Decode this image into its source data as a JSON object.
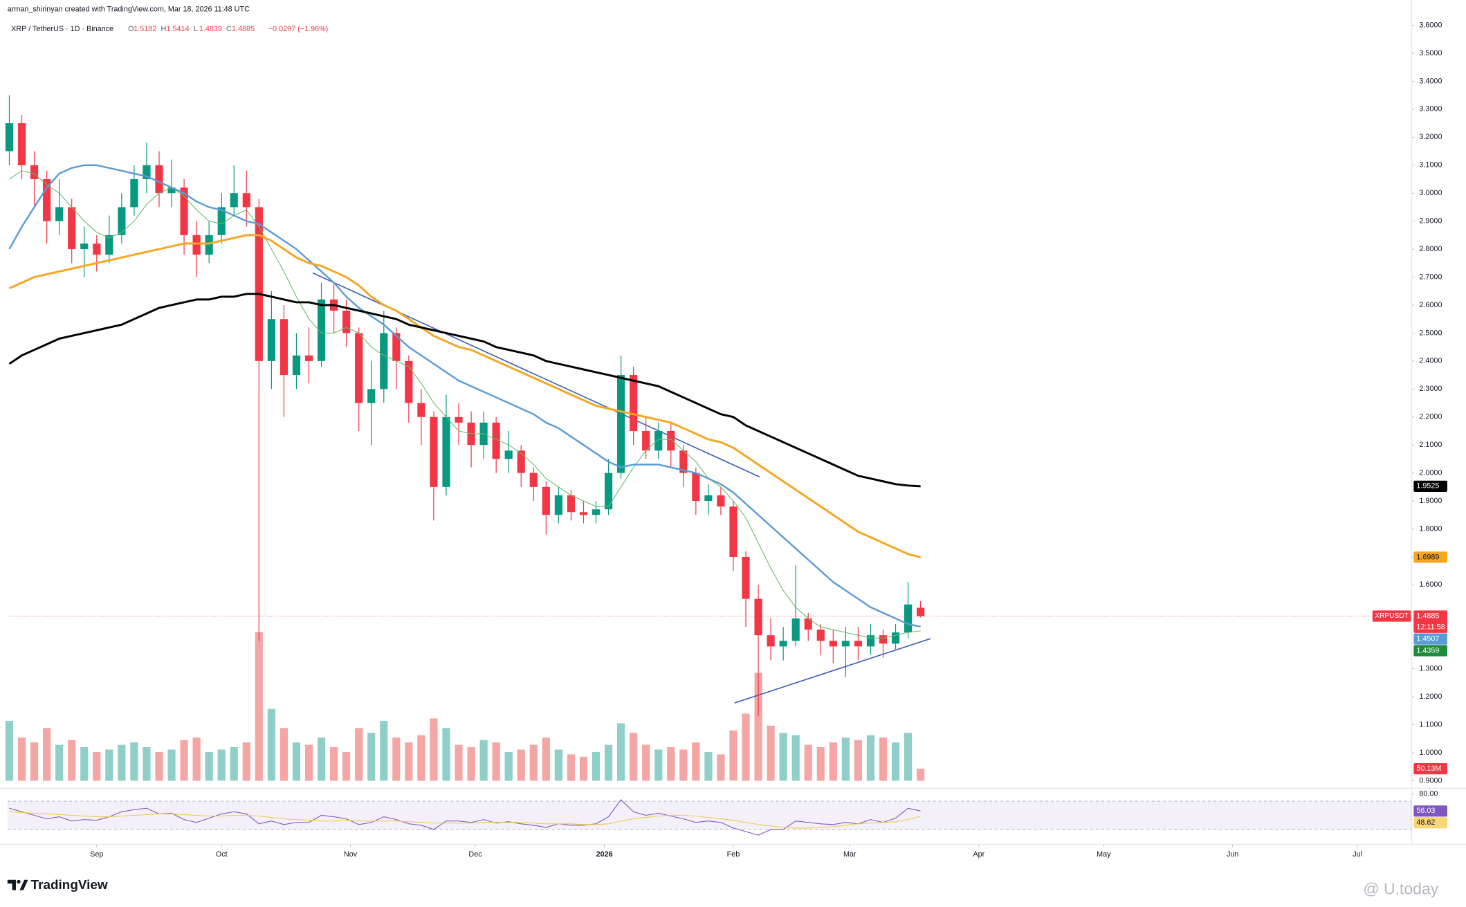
{
  "header": {
    "author_line": "arman_shirinyan created with TradingView.com, Mar 18, 2026 11:48 UTC",
    "brand": "TradingView",
    "watermark": "@ U.today"
  },
  "chart_data": {
    "type": "candlestick",
    "symbol": "XRP / TetherUS · 1D · Binance",
    "ohlc_letters": [
      "O",
      "H",
      "L",
      "C"
    ],
    "change": "−0.0297 (−1.96%)",
    "ticker_label": "XRPUSDT",
    "countdown": "12:11:58",
    "up_color": "#089981",
    "down_color": "#f23645",
    "xlim": [
      -0.5,
      112.5
    ],
    "xticks": [
      {
        "value": 7,
        "label": "Sep"
      },
      {
        "value": 17,
        "label": "Oct"
      },
      {
        "value": 27.33,
        "label": "Nov"
      },
      {
        "value": 37.33,
        "label": "Dec"
      },
      {
        "value": 47.67,
        "label": "2026"
      },
      {
        "value": 58,
        "label": "Feb"
      },
      {
        "value": 67.33,
        "label": "Mar"
      },
      {
        "value": 77.67,
        "label": "Apr"
      },
      {
        "value": 87.67,
        "label": "May"
      },
      {
        "value": 98,
        "label": "Jun"
      },
      {
        "value": 108,
        "label": "Jul"
      }
    ],
    "ylim": [
      0.9,
      3.6
    ],
    "yticks": [
      {
        "value": 3.6,
        "label": "3.6000"
      },
      {
        "value": 3.5,
        "label": "3.5000"
      },
      {
        "value": 3.4,
        "label": "3.4000"
      },
      {
        "value": 3.3,
        "label": "3.3000"
      },
      {
        "value": 3.2,
        "label": "3.2000"
      },
      {
        "value": 3.1,
        "label": "3.1000"
      },
      {
        "value": 3.0,
        "label": "3.0000"
      },
      {
        "value": 2.9,
        "label": "2.9000"
      },
      {
        "value": 2.8,
        "label": "2.8000"
      },
      {
        "value": 2.7,
        "label": "2.7000"
      },
      {
        "value": 2.6,
        "label": "2.6000"
      },
      {
        "value": 2.5,
        "label": "2.5000"
      },
      {
        "value": 2.4,
        "label": "2.4000"
      },
      {
        "value": 2.3,
        "label": "2.3000"
      },
      {
        "value": 2.2,
        "label": "2.2000"
      },
      {
        "value": 2.1,
        "label": "2.1000"
      },
      {
        "value": 2.0,
        "label": "2.0000"
      },
      {
        "value": 1.9,
        "label": "1.9000"
      },
      {
        "value": 1.8,
        "label": "1.8000"
      },
      {
        "value": 1.7,
        "label": "1.7000"
      },
      {
        "value": 1.6,
        "label": "1.6000"
      },
      {
        "value": 1.3,
        "label": "1.3000"
      },
      {
        "value": 1.2,
        "label": "1.2000"
      },
      {
        "value": 1.1,
        "label": "1.1000"
      },
      {
        "value": 1.0,
        "label": "1.0000"
      },
      {
        "value": 0.9,
        "label": "0.9000"
      }
    ],
    "candles": {
      "open": [
        3.15,
        3.25,
        3.1,
        3.05,
        2.9,
        2.95,
        2.8,
        2.82,
        2.78,
        2.85,
        2.95,
        3.05,
        3.1,
        3.0,
        3.02,
        2.85,
        2.78,
        2.85,
        2.95,
        3.0,
        2.95,
        2.4,
        2.55,
        2.35,
        2.42,
        2.4,
        2.62,
        2.58,
        2.5,
        2.25,
        2.3,
        2.5,
        2.4,
        2.25,
        2.2,
        1.95,
        2.2,
        2.18,
        2.1,
        2.18,
        2.05,
        2.08,
        2.0,
        1.95,
        1.85,
        1.92,
        1.86,
        1.85,
        1.87,
        2.0,
        2.35,
        2.15,
        2.08,
        2.15,
        2.08,
        2.0,
        1.9,
        1.92,
        1.88,
        1.7,
        1.55,
        1.42,
        1.38,
        1.4,
        1.48,
        1.44,
        1.4,
        1.38,
        1.4,
        1.38,
        1.42,
        1.39,
        1.43,
        1.5182
      ],
      "high": [
        3.35,
        3.28,
        3.15,
        3.08,
        3.05,
        2.98,
        2.88,
        2.85,
        2.92,
        3.0,
        3.1,
        3.18,
        3.15,
        3.12,
        3.05,
        2.9,
        2.9,
        3.0,
        3.1,
        3.08,
        2.98,
        2.65,
        2.6,
        2.5,
        2.52,
        2.68,
        2.68,
        2.62,
        2.52,
        2.4,
        2.58,
        2.52,
        2.42,
        2.3,
        2.22,
        2.28,
        2.25,
        2.22,
        2.22,
        2.2,
        2.15,
        2.1,
        2.02,
        1.97,
        1.95,
        1.94,
        1.9,
        1.9,
        2.05,
        2.42,
        2.38,
        2.2,
        2.18,
        2.18,
        2.1,
        2.02,
        1.96,
        1.95,
        1.9,
        1.72,
        1.6,
        1.48,
        1.45,
        1.67,
        1.5,
        1.46,
        1.44,
        1.45,
        1.45,
        1.46,
        1.44,
        1.46,
        1.61,
        1.5414
      ],
      "low": [
        3.1,
        3.05,
        2.95,
        2.82,
        2.85,
        2.75,
        2.7,
        2.72,
        2.75,
        2.82,
        2.92,
        3.0,
        2.95,
        2.95,
        2.78,
        2.7,
        2.75,
        2.82,
        2.92,
        2.88,
        1.4,
        2.3,
        2.2,
        2.3,
        2.32,
        2.38,
        2.5,
        2.45,
        2.15,
        2.1,
        2.25,
        2.3,
        2.18,
        2.1,
        1.83,
        1.92,
        2.1,
        2.02,
        2.05,
        2.0,
        2.0,
        1.95,
        1.9,
        1.78,
        1.82,
        1.83,
        1.82,
        1.82,
        1.85,
        1.98,
        2.1,
        2.05,
        2.05,
        2.02,
        1.95,
        1.85,
        1.85,
        1.85,
        1.65,
        1.45,
        1.13,
        1.33,
        1.33,
        1.38,
        1.4,
        1.35,
        1.32,
        1.27,
        1.33,
        1.35,
        1.34,
        1.37,
        1.41,
        1.4839
      ],
      "close": [
        3.25,
        3.1,
        3.05,
        2.9,
        2.95,
        2.8,
        2.82,
        2.78,
        2.85,
        2.95,
        3.05,
        3.1,
        3.0,
        3.02,
        2.85,
        2.78,
        2.85,
        2.95,
        3.0,
        2.95,
        2.4,
        2.55,
        2.35,
        2.42,
        2.4,
        2.62,
        2.58,
        2.5,
        2.25,
        2.3,
        2.5,
        2.4,
        2.25,
        2.2,
        1.95,
        2.2,
        2.18,
        2.1,
        2.18,
        2.05,
        2.08,
        2.0,
        1.95,
        1.85,
        1.92,
        1.86,
        1.85,
        1.87,
        2.0,
        2.35,
        2.15,
        2.08,
        2.15,
        2.08,
        2.0,
        1.9,
        1.92,
        1.88,
        1.7,
        1.55,
        1.42,
        1.38,
        1.4,
        1.48,
        1.44,
        1.4,
        1.38,
        1.4,
        1.38,
        1.42,
        1.39,
        1.43,
        1.53,
        1.4885
      ]
    },
    "series": [
      {
        "color": "#66bb6a",
        "width": 0.8,
        "label_color": "#1e8c3a",
        "values": [
          3.05,
          3.08,
          3.07,
          3.03,
          3.0,
          2.95,
          2.9,
          2.86,
          2.84,
          2.86,
          2.9,
          2.96,
          3.0,
          3.02,
          2.99,
          2.94,
          2.9,
          2.89,
          2.92,
          2.94,
          2.88,
          2.8,
          2.72,
          2.63,
          2.55,
          2.5,
          2.5,
          2.52,
          2.5,
          2.45,
          2.42,
          2.4,
          2.38,
          2.32,
          2.25,
          2.2,
          2.15,
          2.14,
          2.14,
          2.12,
          2.1,
          2.07,
          2.03,
          1.98,
          1.95,
          1.92,
          1.9,
          1.88,
          1.88,
          1.95,
          2.02,
          2.08,
          2.12,
          2.12,
          2.08,
          2.04,
          1.98,
          1.95,
          1.9,
          1.84,
          1.75,
          1.66,
          1.58,
          1.52,
          1.48,
          1.45,
          1.44,
          1.43,
          1.42,
          1.41,
          1.41,
          1.42,
          1.43,
          1.4359
        ]
      },
      {
        "color": "#5b9bd5",
        "width": 1.8,
        "label_color": "#5b9bd5",
        "values": [
          2.8,
          2.88,
          2.95,
          3.02,
          3.07,
          3.09,
          3.1,
          3.1,
          3.09,
          3.08,
          3.07,
          3.06,
          3.04,
          3.02,
          3.0,
          2.97,
          2.95,
          2.94,
          2.92,
          2.9,
          2.89,
          2.86,
          2.83,
          2.8,
          2.76,
          2.72,
          2.68,
          2.63,
          2.59,
          2.56,
          2.53,
          2.49,
          2.45,
          2.42,
          2.39,
          2.36,
          2.33,
          2.31,
          2.29,
          2.27,
          2.25,
          2.23,
          2.21,
          2.18,
          2.16,
          2.13,
          2.1,
          2.07,
          2.04,
          2.02,
          2.03,
          2.03,
          2.03,
          2.02,
          2.01,
          2.0,
          1.98,
          1.96,
          1.93,
          1.89,
          1.85,
          1.81,
          1.77,
          1.73,
          1.69,
          1.65,
          1.61,
          1.58,
          1.55,
          1.52,
          1.5,
          1.48,
          1.46,
          1.4507
        ]
      },
      {
        "color": "#f5a623",
        "width": 2.2,
        "label_color": "#f5a623",
        "values": [
          2.66,
          2.68,
          2.7,
          2.71,
          2.72,
          2.73,
          2.74,
          2.75,
          2.76,
          2.77,
          2.78,
          2.79,
          2.8,
          2.81,
          2.82,
          2.82,
          2.82,
          2.83,
          2.84,
          2.85,
          2.85,
          2.83,
          2.8,
          2.77,
          2.75,
          2.74,
          2.72,
          2.7,
          2.67,
          2.63,
          2.6,
          2.58,
          2.55,
          2.52,
          2.49,
          2.47,
          2.45,
          2.44,
          2.42,
          2.4,
          2.38,
          2.36,
          2.34,
          2.32,
          2.3,
          2.28,
          2.26,
          2.24,
          2.23,
          2.22,
          2.21,
          2.2,
          2.19,
          2.18,
          2.16,
          2.14,
          2.12,
          2.11,
          2.09,
          2.06,
          2.03,
          2.0,
          1.97,
          1.94,
          1.91,
          1.88,
          1.85,
          1.82,
          1.79,
          1.77,
          1.75,
          1.73,
          1.71,
          1.6989
        ]
      },
      {
        "color": "#000000",
        "width": 2.2,
        "label_color": "#000000",
        "values": [
          2.39,
          2.42,
          2.44,
          2.46,
          2.48,
          2.49,
          2.5,
          2.51,
          2.52,
          2.53,
          2.55,
          2.57,
          2.59,
          2.6,
          2.61,
          2.62,
          2.62,
          2.63,
          2.63,
          2.64,
          2.64,
          2.63,
          2.62,
          2.61,
          2.61,
          2.6,
          2.6,
          2.59,
          2.58,
          2.57,
          2.56,
          2.55,
          2.53,
          2.52,
          2.51,
          2.5,
          2.49,
          2.48,
          2.47,
          2.45,
          2.44,
          2.43,
          2.42,
          2.4,
          2.39,
          2.38,
          2.37,
          2.36,
          2.35,
          2.34,
          2.33,
          2.32,
          2.31,
          2.29,
          2.27,
          2.25,
          2.23,
          2.21,
          2.2,
          2.17,
          2.15,
          2.13,
          2.11,
          2.09,
          2.07,
          2.05,
          2.03,
          2.01,
          1.99,
          1.98,
          1.97,
          1.96,
          1.955,
          1.9525
        ]
      }
    ],
    "trendlines": {
      "color": "#3b5fb5",
      "lines": [
        {
          "x": [
            24.3,
            60.1
          ],
          "y": [
            2.715,
            1.986
          ]
        },
        {
          "x": [
            58.1,
            73.8
          ],
          "y": [
            1.178,
            1.408
          ]
        }
      ]
    },
    "volume": {
      "ylim": [
        0,
        800
      ],
      "up_color": "#8fcfc7",
      "down_color": "#f3a6a4",
      "values": [
        250,
        180,
        160,
        220,
        150,
        170,
        140,
        120,
        130,
        150,
        160,
        140,
        120,
        130,
        170,
        180,
        120,
        130,
        140,
        160,
        620,
        300,
        220,
        160,
        150,
        180,
        140,
        120,
        220,
        200,
        250,
        180,
        160,
        190,
        260,
        220,
        150,
        140,
        170,
        160,
        120,
        130,
        150,
        180,
        130,
        110,
        100,
        120,
        150,
        240,
        200,
        150,
        130,
        140,
        130,
        160,
        120,
        110,
        210,
        280,
        450,
        230,
        200,
        190,
        150,
        140,
        160,
        180,
        170,
        190,
        180,
        160,
        200,
        50.13
      ],
      "value_labels": [
        null,
        null,
        null,
        null,
        null,
        null,
        null,
        null,
        null,
        null,
        null,
        null,
        null,
        null,
        null,
        null,
        null,
        null,
        null,
        null,
        null,
        null,
        null,
        null,
        null,
        null,
        null,
        null,
        null,
        null,
        null,
        null,
        null,
        null,
        null,
        null,
        null,
        null,
        null,
        null,
        null,
        null,
        null,
        null,
        null,
        null,
        null,
        null,
        null,
        null,
        null,
        null,
        null,
        null,
        null,
        null,
        null,
        null,
        null,
        null,
        null,
        null,
        null,
        null,
        null,
        null,
        null,
        null,
        null,
        null,
        null,
        null,
        null,
        "50.13M"
      ]
    },
    "rsi": {
      "ylim": [
        17,
        83
      ],
      "yticks": [
        {
          "value": 80,
          "label": "80.00"
        }
      ],
      "bands": [
        30,
        70
      ],
      "series": [
        {
          "color": "#7e57c2",
          "label_color": "#7e57c2",
          "values": [
            60,
            55,
            50,
            45,
            48,
            42,
            44,
            43,
            48,
            55,
            58,
            60,
            52,
            53,
            44,
            40,
            46,
            52,
            55,
            52,
            38,
            42,
            37,
            40,
            40,
            50,
            48,
            45,
            37,
            40,
            48,
            44,
            38,
            36,
            30,
            42,
            42,
            40,
            44,
            39,
            41,
            38,
            36,
            33,
            38,
            36,
            36,
            38,
            48,
            72,
            55,
            50,
            53,
            49,
            45,
            40,
            42,
            40,
            32,
            27,
            22,
            30,
            30,
            42,
            40,
            38,
            37,
            40,
            38,
            44,
            40,
            46,
            60,
            56.03
          ]
        },
        {
          "color": "#f2c94c",
          "label_color": "#f7d774",
          "values": [
            55,
            54,
            53,
            52,
            51,
            50,
            49,
            48,
            48,
            49,
            50,
            51,
            52,
            52,
            51,
            50,
            49,
            49,
            50,
            50,
            49,
            47,
            45,
            44,
            43,
            42,
            42,
            43,
            42,
            42,
            42,
            42,
            41,
            40,
            39,
            39,
            39,
            39,
            40,
            40,
            40,
            40,
            39,
            38,
            38,
            38,
            37,
            37,
            38,
            42,
            45,
            47,
            49,
            50,
            50,
            49,
            47,
            45,
            43,
            40,
            37,
            35,
            33,
            32,
            32,
            33,
            34,
            36,
            38,
            39,
            40,
            41,
            44,
            48.62
          ]
        }
      ]
    }
  }
}
